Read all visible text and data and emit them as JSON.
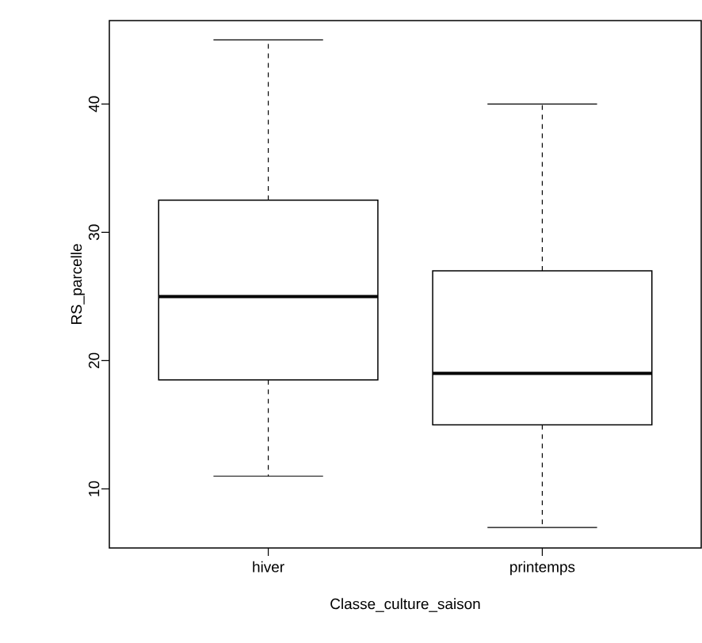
{
  "chart_data": {
    "type": "box",
    "xlabel": "Classe_culture_saison",
    "ylabel": "RS_parcelle",
    "categories": [
      "hiver",
      "printemps"
    ],
    "color": "#000000",
    "boxes": [
      {
        "low": 11,
        "q1": 18.5,
        "median": 25,
        "q3": 32.5,
        "high": 45
      },
      {
        "low": 7,
        "q1": 15,
        "median": 19,
        "q3": 27,
        "high": 40
      }
    ],
    "ylim": [
      5.4,
      46.5
    ],
    "yticks": [
      10,
      20,
      30,
      40
    ]
  }
}
